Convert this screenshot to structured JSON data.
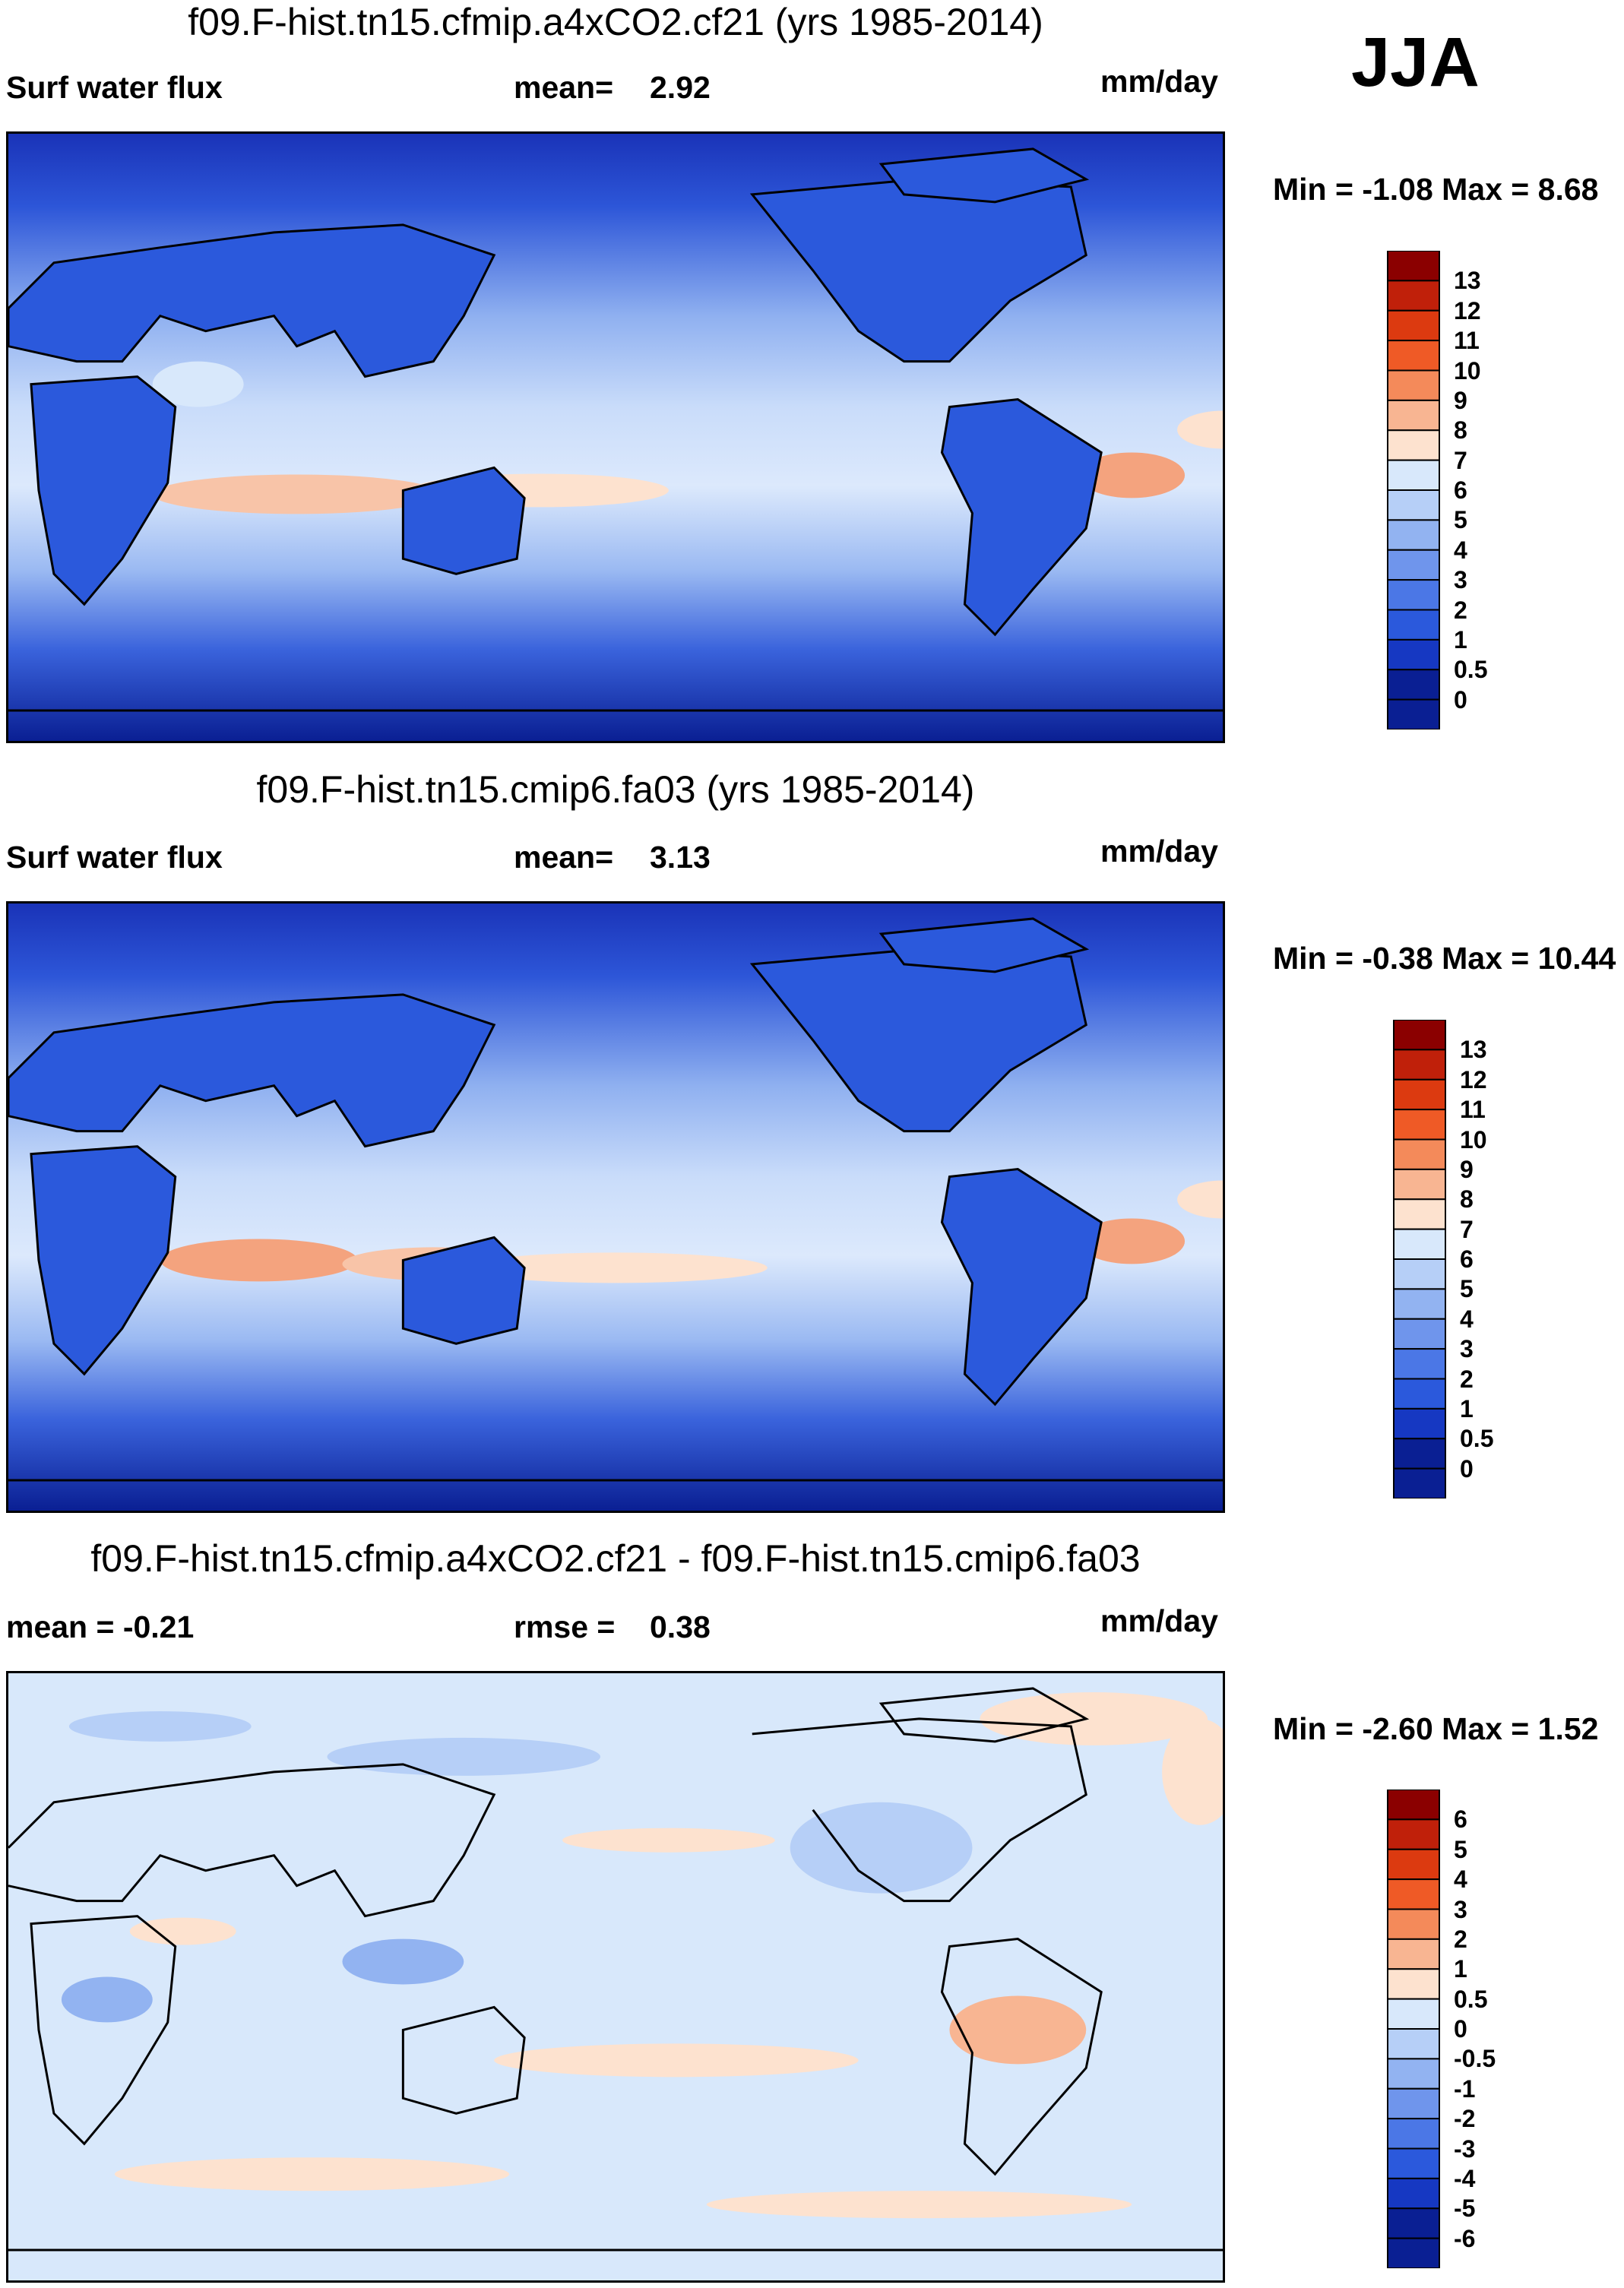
{
  "season": "JJA",
  "panels": [
    {
      "title": "f09.F-hist.tn15.cfmip.a4xCO2.cf21 (yrs 1985-2014)",
      "left_label": "Surf water flux",
      "mid_label": "mean=",
      "mid_value": "2.92",
      "units": "mm/day",
      "minmax": "Min = -1.08 Max = 8.68",
      "colorbar_levels": [
        "13",
        "12",
        "11",
        "10",
        "9",
        "8",
        "7",
        "6",
        "5",
        "4",
        "3",
        "2",
        "1",
        "0.5",
        "0"
      ],
      "colorbar_colors": [
        "#8b0000",
        "#c0200a",
        "#dc3a10",
        "#ef5a26",
        "#f48a5a",
        "#f8b592",
        "#fde2cf",
        "#d8e8fb",
        "#b6cff7",
        "#92b3f1",
        "#6f95ec",
        "#4b77e6",
        "#2b59dc",
        "#1638c2",
        "#0a1f93"
      ]
    },
    {
      "title": "f09.F-hist.tn15.cmip6.fa03 (yrs 1985-2014)",
      "left_label": "Surf water flux",
      "mid_label": "mean=",
      "mid_value": "3.13",
      "units": "mm/day",
      "minmax": "Min = -0.38 Max = 10.44",
      "colorbar_levels": [
        "13",
        "12",
        "11",
        "10",
        "9",
        "8",
        "7",
        "6",
        "5",
        "4",
        "3",
        "2",
        "1",
        "0.5",
        "0"
      ],
      "colorbar_colors": [
        "#8b0000",
        "#c0200a",
        "#dc3a10",
        "#ef5a26",
        "#f48a5a",
        "#f8b592",
        "#fde2cf",
        "#d8e8fb",
        "#b6cff7",
        "#92b3f1",
        "#6f95ec",
        "#4b77e6",
        "#2b59dc",
        "#1638c2",
        "#0a1f93"
      ]
    },
    {
      "title": "f09.F-hist.tn15.cfmip.a4xCO2.cf21 - f09.F-hist.tn15.cmip6.fa03",
      "left_label": "mean =  -0.21",
      "mid_label": "rmse =",
      "mid_value": "0.38",
      "units": "mm/day",
      "minmax": "Min = -2.60 Max = 1.52",
      "colorbar_levels": [
        "6",
        "5",
        "4",
        "3",
        "2",
        "1",
        "0.5",
        "0",
        "-0.5",
        "-1",
        "-2",
        "-3",
        "-4",
        "-5",
        "-6"
      ],
      "colorbar_colors": [
        "#8b0000",
        "#c0200a",
        "#dc3a10",
        "#ef5a26",
        "#f48a5a",
        "#f8b592",
        "#fde2cf",
        "#d8e8fb",
        "#b6cff7",
        "#92b3f1",
        "#6f95ec",
        "#4b77e6",
        "#2b59dc",
        "#1638c2",
        "#0a1f93"
      ]
    }
  ],
  "chart_data": [
    {
      "type": "heatmap",
      "title": "f09.F-hist.tn15.cfmip.a4xCO2.cf21 (yrs 1985-2014)",
      "variable": "Surf water flux",
      "units": "mm/day",
      "mean": 2.92,
      "min": -1.08,
      "max": 8.68,
      "contour_levels": [
        0,
        0.5,
        1,
        2,
        3,
        4,
        5,
        6,
        7,
        8,
        9,
        10,
        11,
        12,
        13
      ],
      "projection": "cylindrical equidistant, centered on Pacific"
    },
    {
      "type": "heatmap",
      "title": "f09.F-hist.tn15.cmip6.fa03 (yrs 1985-2014)",
      "variable": "Surf water flux",
      "units": "mm/day",
      "mean": 3.13,
      "min": -0.38,
      "max": 10.44,
      "contour_levels": [
        0,
        0.5,
        1,
        2,
        3,
        4,
        5,
        6,
        7,
        8,
        9,
        10,
        11,
        12,
        13
      ],
      "projection": "cylindrical equidistant, centered on Pacific"
    },
    {
      "type": "heatmap",
      "title": "f09.F-hist.tn15.cfmip.a4xCO2.cf21 - f09.F-hist.tn15.cmip6.fa03",
      "variable": "difference",
      "units": "mm/day",
      "mean": -0.21,
      "rmse": 0.38,
      "min": -2.6,
      "max": 1.52,
      "contour_levels": [
        -6,
        -5,
        -4,
        -3,
        -2,
        -1,
        -0.5,
        0,
        0.5,
        1,
        2,
        3,
        4,
        5,
        6
      ],
      "projection": "cylindrical equidistant, centered on Pacific"
    }
  ]
}
